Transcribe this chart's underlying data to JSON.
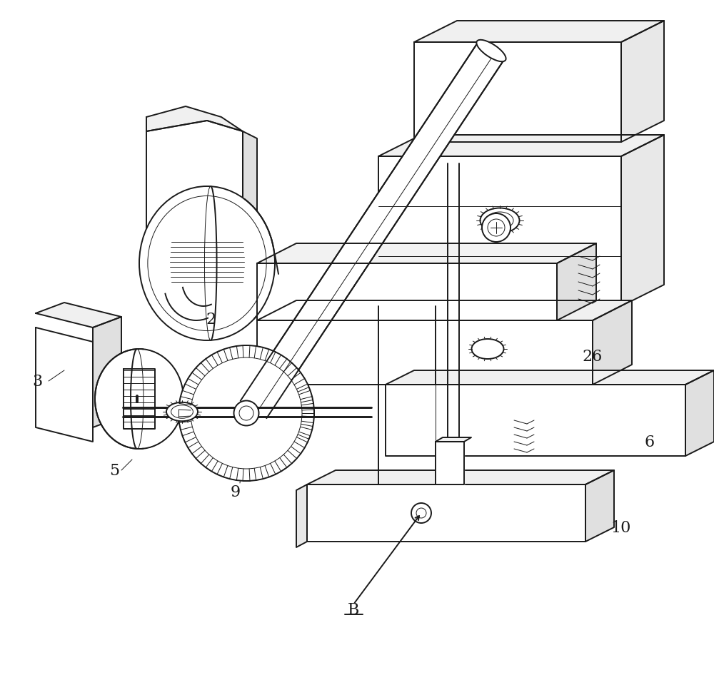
{
  "bg_color": "#ffffff",
  "line_color": "#1a1a1a",
  "lw": 1.4,
  "tlw": 0.7,
  "figsize": [
    10.0,
    9.54
  ],
  "dpi": 100,
  "label_fontsize": 16
}
